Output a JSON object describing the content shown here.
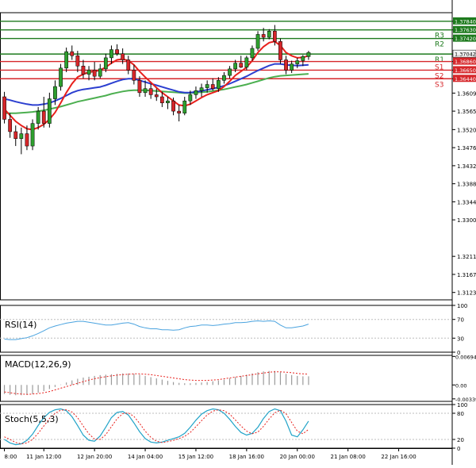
{
  "colors": {
    "background": "#ffffff",
    "frame": "#000000",
    "bull_candle": "#2e9f2e",
    "bear_candle": "#d6262a",
    "resistance": "#1d7a1d",
    "support": "#d6262a",
    "ma_fast": "#e8201c",
    "ma_mid": "#2c3fd0",
    "ma_slow": "#4caf50",
    "rsi_line": "#4aa3df",
    "macd_hist": "#9a9a9a",
    "macd_signal": "#e8201c",
    "stoch_main": "#21a3c8",
    "stoch_signal": "#e8201c",
    "current_price_box": "#f2f2f2"
  },
  "chart_data": [
    {
      "type": "candlestick",
      "ylim": [
        1.3105,
        1.3805
      ],
      "y_tick_labels": [
        "1.37840",
        "1.37630",
        "1.37420",
        "1.37042",
        "1.36860",
        "1.36650",
        "1.36440",
        "1.36090",
        "1.35650",
        "1.35200",
        "1.34760",
        "1.34320",
        "1.33880",
        "1.33440",
        "1.33000",
        "1.32110",
        "1.31670",
        "1.31230"
      ],
      "y_tick_values": [
        1.3784,
        1.3763,
        1.3742,
        1.37042,
        1.3686,
        1.3665,
        1.3644,
        1.3609,
        1.3565,
        1.352,
        1.3476,
        1.3432,
        1.3388,
        1.3344,
        1.33,
        1.3211,
        1.3167,
        1.3123
      ],
      "x_labels": [
        {
          "i": 0,
          "text": "8:00"
        },
        {
          "i": 7,
          "text": "11 Jan 12:00"
        },
        {
          "i": 16,
          "text": "12 Jan 20:00"
        },
        {
          "i": 25,
          "text": "14 Jan 04:00"
        },
        {
          "i": 34,
          "text": "15 Jan 12:00"
        },
        {
          "i": 43,
          "text": "18 Jan 16:00"
        },
        {
          "i": 52,
          "text": "20 Jan 00:00"
        },
        {
          "i": 61,
          "text": "21 Jan 08:00"
        },
        {
          "i": 70,
          "text": "22 Jan 16:00"
        }
      ],
      "levels": [
        {
          "name": "R3",
          "value": 1.3763,
          "kind": "resistance"
        },
        {
          "name": "R2",
          "value": 1.3742,
          "kind": "resistance"
        },
        {
          "name": "R1",
          "value": 1.37042,
          "kind": "resistance"
        },
        {
          "name": "",
          "value": 1.3784,
          "kind": "resistance"
        },
        {
          "name": "S1",
          "value": 1.3686,
          "kind": "support"
        },
        {
          "name": "S2",
          "value": 1.3665,
          "kind": "support"
        },
        {
          "name": "S3",
          "value": 1.3644,
          "kind": "support"
        }
      ],
      "current_price": 1.37042,
      "candles": [
        [
          1.36,
          1.3612,
          1.3535,
          1.3545
        ],
        [
          1.3545,
          1.356,
          1.35,
          1.3515
        ],
        [
          1.3515,
          1.353,
          1.348,
          1.3498
        ],
        [
          1.3498,
          1.3525,
          1.346,
          1.351
        ],
        [
          1.351,
          1.353,
          1.347,
          1.348
        ],
        [
          1.348,
          1.3545,
          1.347,
          1.3535
        ],
        [
          1.3535,
          1.3575,
          1.352,
          1.3565
        ],
        [
          1.3565,
          1.36,
          1.3525,
          1.3535
        ],
        [
          1.3535,
          1.361,
          1.3525,
          1.3595
        ],
        [
          1.3595,
          1.364,
          1.358,
          1.3625
        ],
        [
          1.3625,
          1.368,
          1.3615,
          1.367
        ],
        [
          1.367,
          1.372,
          1.366,
          1.371
        ],
        [
          1.371,
          1.3725,
          1.369,
          1.37
        ],
        [
          1.37,
          1.3712,
          1.366,
          1.3675
        ],
        [
          1.3675,
          1.369,
          1.3645,
          1.3655
        ],
        [
          1.3655,
          1.3675,
          1.364,
          1.3665
        ],
        [
          1.3665,
          1.3685,
          1.364,
          1.365
        ],
        [
          1.365,
          1.368,
          1.3645,
          1.3668
        ],
        [
          1.3668,
          1.3705,
          1.366,
          1.3695
        ],
        [
          1.3695,
          1.3725,
          1.368,
          1.3715
        ],
        [
          1.3715,
          1.3728,
          1.37,
          1.3705
        ],
        [
          1.3705,
          1.3718,
          1.368,
          1.369
        ],
        [
          1.369,
          1.37,
          1.3655,
          1.3665
        ],
        [
          1.3665,
          1.3678,
          1.363,
          1.364
        ],
        [
          1.364,
          1.365,
          1.36,
          1.361
        ],
        [
          1.361,
          1.364,
          1.36,
          1.362
        ],
        [
          1.362,
          1.3632,
          1.3595,
          1.3605
        ],
        [
          1.3605,
          1.362,
          1.359,
          1.36
        ],
        [
          1.36,
          1.3612,
          1.3575,
          1.3585
        ],
        [
          1.3585,
          1.36,
          1.357,
          1.359
        ],
        [
          1.359,
          1.3598,
          1.3555,
          1.3565
        ],
        [
          1.3565,
          1.358,
          1.354,
          1.356
        ],
        [
          1.356,
          1.36,
          1.3555,
          1.359
        ],
        [
          1.359,
          1.3615,
          1.358,
          1.3605
        ],
        [
          1.3605,
          1.3625,
          1.3595,
          1.3615
        ],
        [
          1.3615,
          1.3632,
          1.36,
          1.3622
        ],
        [
          1.3622,
          1.364,
          1.361,
          1.363
        ],
        [
          1.363,
          1.3645,
          1.3615,
          1.362
        ],
        [
          1.362,
          1.3648,
          1.3612,
          1.364
        ],
        [
          1.364,
          1.366,
          1.3632,
          1.3652
        ],
        [
          1.3652,
          1.3675,
          1.3645,
          1.3668
        ],
        [
          1.3668,
          1.369,
          1.366,
          1.3682
        ],
        [
          1.3682,
          1.37,
          1.367,
          1.3672
        ],
        [
          1.3672,
          1.37,
          1.3665,
          1.3695
        ],
        [
          1.3695,
          1.3725,
          1.3688,
          1.3718
        ],
        [
          1.3718,
          1.376,
          1.3712,
          1.3752
        ],
        [
          1.3752,
          1.3768,
          1.3735,
          1.3745
        ],
        [
          1.3745,
          1.3765,
          1.374,
          1.376
        ],
        [
          1.376,
          1.3775,
          1.3725,
          1.3735
        ],
        [
          1.3735,
          1.3742,
          1.368,
          1.369
        ],
        [
          1.369,
          1.37,
          1.3655,
          1.3665
        ],
        [
          1.3665,
          1.3688,
          1.3658,
          1.368
        ],
        [
          1.368,
          1.3695,
          1.367,
          1.3688
        ],
        [
          1.3688,
          1.3702,
          1.3675,
          1.3698
        ],
        [
          1.3698,
          1.3712,
          1.369,
          1.3708
        ]
      ],
      "ma_fast": [
        1.357,
        1.3555,
        1.354,
        1.353,
        1.3522,
        1.352,
        1.3525,
        1.3533,
        1.3545,
        1.3562,
        1.3585,
        1.361,
        1.3632,
        1.3648,
        1.3655,
        1.366,
        1.3662,
        1.3665,
        1.3672,
        1.3682,
        1.369,
        1.3692,
        1.3688,
        1.3678,
        1.3662,
        1.3648,
        1.3635,
        1.3622,
        1.361,
        1.36,
        1.359,
        1.358,
        1.3578,
        1.3582,
        1.359,
        1.3598,
        1.3605,
        1.361,
        1.3615,
        1.3625,
        1.3638,
        1.3652,
        1.3662,
        1.3672,
        1.3688,
        1.3708,
        1.3722,
        1.3732,
        1.3735,
        1.3725,
        1.3708,
        1.37,
        1.3695,
        1.3696,
        1.37
      ],
      "ma_mid": [
        1.3595,
        1.3592,
        1.3588,
        1.3585,
        1.3582,
        1.358,
        1.358,
        1.3582,
        1.3585,
        1.359,
        1.3596,
        1.3603,
        1.361,
        1.3615,
        1.3618,
        1.362,
        1.3622,
        1.3624,
        1.3628,
        1.3633,
        1.3638,
        1.3642,
        1.3644,
        1.3644,
        1.364,
        1.3636,
        1.3632,
        1.3628,
        1.3624,
        1.362,
        1.3616,
        1.3612,
        1.361,
        1.361,
        1.3612,
        1.3614,
        1.3617,
        1.362,
        1.3623,
        1.3627,
        1.3632,
        1.3638,
        1.3644,
        1.365,
        1.3657,
        1.3664,
        1.367,
        1.3676,
        1.368,
        1.368,
        1.3678,
        1.3677,
        1.3676,
        1.3677,
        1.3678
      ],
      "ma_slow": [
        1.356,
        1.356,
        1.356,
        1.3561,
        1.3562,
        1.3563,
        1.3565,
        1.3567,
        1.357,
        1.3573,
        1.3576,
        1.358,
        1.3584,
        1.3588,
        1.3591,
        1.3594,
        1.3597,
        1.36,
        1.3603,
        1.3607,
        1.361,
        1.3613,
        1.3615,
        1.3616,
        1.3616,
        1.3616,
        1.3615,
        1.3614,
        1.3613,
        1.3612,
        1.3611,
        1.361,
        1.3609,
        1.3609,
        1.361,
        1.3611,
        1.3612,
        1.3614,
        1.3616,
        1.3618,
        1.3621,
        1.3624,
        1.3627,
        1.363,
        1.3634,
        1.3638,
        1.3642,
        1.3646,
        1.3649,
        1.3651,
        1.3652,
        1.3653,
        1.3654,
        1.3655,
        1.3656
      ]
    },
    {
      "type": "line",
      "title": "RSI(14)",
      "ylim": [
        0,
        100
      ],
      "y_tick_labels": [
        "100",
        "70",
        "30",
        "0"
      ],
      "y_tick_values": [
        100,
        70,
        30,
        0
      ],
      "values": [
        28,
        27,
        27,
        29,
        31,
        35,
        40,
        46,
        52,
        56,
        59,
        62,
        64,
        66,
        66,
        64,
        62,
        60,
        58,
        58,
        60,
        62,
        63,
        60,
        55,
        52,
        50,
        50,
        48,
        48,
        47,
        48,
        52,
        55,
        56,
        58,
        58,
        57,
        58,
        60,
        61,
        63,
        63,
        64,
        66,
        67,
        66,
        67,
        66,
        58,
        52,
        52,
        54,
        56,
        60
      ]
    },
    {
      "type": "bar",
      "title": "MACD(12,26,9)",
      "ylim": [
        -0.004,
        0.0072
      ],
      "y_tick_labels": [
        "0.006947",
        "0.00",
        "-0.00339"
      ],
      "y_tick_values": [
        0.006947,
        0.0,
        -0.00339
      ],
      "hist": [
        -0.0022,
        -0.0024,
        -0.0025,
        -0.0025,
        -0.0024,
        -0.0022,
        -0.0019,
        -0.0015,
        -0.001,
        -0.0005,
        0.0001,
        0.0006,
        0.0011,
        0.0015,
        0.0018,
        0.002,
        0.0022,
        0.0024,
        0.0025,
        0.0026,
        0.0027,
        0.0028,
        0.0028,
        0.0027,
        0.0025,
        0.0022,
        0.0019,
        0.0016,
        0.0013,
        0.001,
        0.0007,
        0.0005,
        0.0004,
        0.0004,
        0.0005,
        0.0006,
        0.0007,
        0.0009,
        0.0011,
        0.0013,
        0.0016,
        0.0019,
        0.0022,
        0.0025,
        0.0028,
        0.0031,
        0.0033,
        0.0034,
        0.0034,
        0.0031,
        0.0027,
        0.0024,
        0.0022,
        0.0021,
        0.0021
      ],
      "signal": [
        -0.0017,
        -0.0019,
        -0.0021,
        -0.0022,
        -0.0023,
        -0.0022,
        -0.0021,
        -0.0019,
        -0.0016,
        -0.0012,
        -0.0008,
        -0.0004,
        0.0,
        0.0004,
        0.0008,
        0.0012,
        0.0015,
        0.0018,
        0.002,
        0.0022,
        0.0024,
        0.0025,
        0.0026,
        0.0027,
        0.0027,
        0.0026,
        0.0025,
        0.0023,
        0.0021,
        0.0019,
        0.0017,
        0.0015,
        0.0013,
        0.0012,
        0.0011,
        0.0011,
        0.0011,
        0.0012,
        0.0013,
        0.0015,
        0.0017,
        0.0019,
        0.0021,
        0.0023,
        0.0025,
        0.0027,
        0.0029,
        0.0031,
        0.0032,
        0.0032,
        0.0031,
        0.003,
        0.0028,
        0.0027,
        0.0026
      ]
    },
    {
      "type": "line",
      "title": "Stoch(5,5,3)",
      "ylim": [
        0,
        100
      ],
      "y_tick_labels": [
        "100",
        "80",
        "20",
        "0"
      ],
      "y_tick_values": [
        100,
        80,
        20,
        0
      ],
      "series": [
        {
          "name": "main",
          "values": [
            20,
            12,
            8,
            10,
            18,
            32,
            52,
            70,
            82,
            88,
            90,
            86,
            72,
            52,
            30,
            18,
            16,
            28,
            48,
            70,
            82,
            84,
            76,
            58,
            38,
            22,
            14,
            12,
            14,
            18,
            22,
            26,
            34,
            48,
            64,
            78,
            86,
            90,
            88,
            80,
            66,
            50,
            36,
            30,
            34,
            48,
            68,
            84,
            90,
            86,
            62,
            30,
            26,
            42,
            62
          ]
        },
        {
          "name": "signal",
          "values": [
            26,
            20,
            13,
            10,
            12,
            20,
            34,
            51,
            68,
            80,
            87,
            88,
            83,
            70,
            51,
            33,
            21,
            20,
            31,
            49,
            67,
            79,
            81,
            73,
            57,
            39,
            25,
            16,
            13,
            15,
            18,
            22,
            27,
            36,
            49,
            63,
            76,
            85,
            88,
            86,
            78,
            65,
            51,
            39,
            33,
            37,
            50,
            67,
            81,
            87,
            79,
            59,
            39,
            33,
            43
          ]
        }
      ]
    }
  ]
}
